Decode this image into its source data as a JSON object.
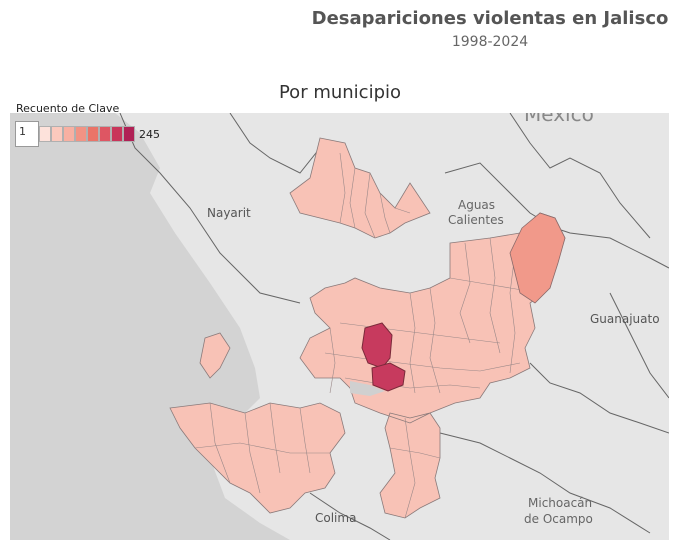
{
  "title": "Desapariciones violentas en Jalisco",
  "subtitle": "1998-2024",
  "map_title": "Por municipio",
  "legend": {
    "title": "Recuento de Clave",
    "min": "1",
    "max": "245",
    "colors": [
      "#fde2db",
      "#fbc9bd",
      "#f8b0a2",
      "#f29384",
      "#ea7468",
      "#de5663",
      "#c9355a",
      "#b02155"
    ]
  },
  "place_labels": {
    "mexico": "México",
    "nayarit": "Nayarit",
    "aguas": "Aguas",
    "calientes": "Calientes",
    "guanajuato": "Guanajuato",
    "colima": "Colima",
    "michoacan": "Michoacán",
    "ocampo": "de Ocampo"
  },
  "colors": {
    "land": "#e3e3e3",
    "water": "#cfcfcf",
    "low": "#f9c2b5",
    "mid": "#f1998a",
    "high": "#c73a5e"
  }
}
